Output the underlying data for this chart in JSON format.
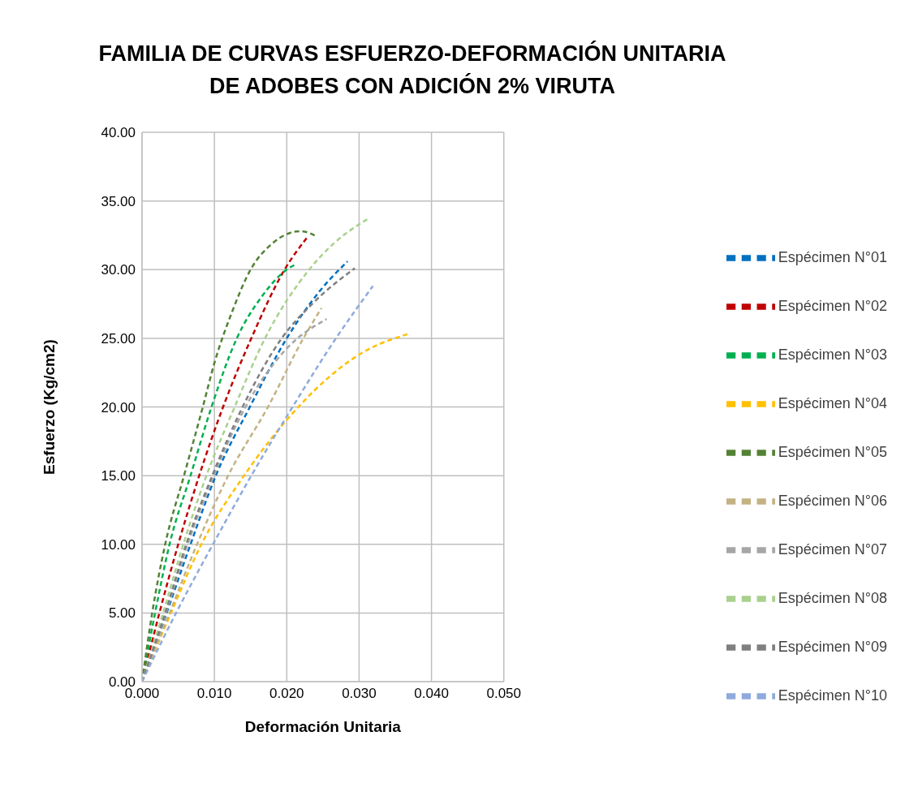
{
  "chart_data": {
    "type": "line",
    "title": "FAMILIA DE CURVAS ESFUERZO-DEFORMACIÓN UNITARIA\nDE ADOBES CON ADICIÓN 2% VIRUTA",
    "xlabel": "Deformación Unitaria",
    "ylabel": "Esfuerzo (Kg/cm2)",
    "xlim": [
      0,
      0.05
    ],
    "xticks": [
      {
        "value": 0,
        "label": "0.000"
      },
      {
        "value": 0.01,
        "label": "0.010"
      },
      {
        "value": 0.02,
        "label": "0.020"
      },
      {
        "value": 0.03,
        "label": "0.030"
      },
      {
        "value": 0.04,
        "label": "0.040"
      },
      {
        "value": 0.05,
        "label": "0.050"
      }
    ],
    "ylim": [
      0,
      40
    ],
    "yticks": [
      {
        "value": 0,
        "label": "0.00"
      },
      {
        "value": 5,
        "label": "5.00"
      },
      {
        "value": 10,
        "label": "10.00"
      },
      {
        "value": 15,
        "label": "15.00"
      },
      {
        "value": 20,
        "label": "20.00"
      },
      {
        "value": 25,
        "label": "25.00"
      },
      {
        "value": 30,
        "label": "30.00"
      },
      {
        "value": 35,
        "label": "35.00"
      },
      {
        "value": 40,
        "label": "40.00"
      }
    ],
    "grid": true,
    "legend": "right",
    "marker": "none",
    "line_style": "dashed",
    "series": [
      {
        "name": "Espécimen N°01",
        "color": "#0070c0",
        "x": [
          0,
          0.0034,
          0.0067,
          0.0102,
          0.0149,
          0.02,
          0.0245,
          0.0284
        ],
        "values": [
          0,
          5,
          10,
          15,
          20,
          25,
          28.4,
          30.6
        ]
      },
      {
        "name": "Espécimen N°02",
        "color": "#c00000",
        "x": [
          0,
          0.0024,
          0.005,
          0.0079,
          0.0112,
          0.0151,
          0.0197,
          0.0229
        ],
        "values": [
          0,
          5,
          10,
          15,
          20,
          25,
          30,
          32.4
        ]
      },
      {
        "name": "Espécimen N°03",
        "color": "#00b050",
        "x": [
          0,
          0.0018,
          0.0038,
          0.0067,
          0.0096,
          0.0131,
          0.0165,
          0.02,
          0.0213
        ],
        "values": [
          0,
          5,
          10,
          15,
          20,
          25,
          28,
          30,
          30.4
        ]
      },
      {
        "name": "Espécimen N°04",
        "color": "#ffc000",
        "x": [
          0,
          0.004,
          0.0082,
          0.0141,
          0.0216,
          0.0306,
          0.0367
        ],
        "values": [
          0,
          5,
          10,
          15,
          20,
          24,
          25.3
        ]
      },
      {
        "name": "Espécimen N°05",
        "color": "#548235",
        "x": [
          0,
          0.0014,
          0.0032,
          0.0058,
          0.0084,
          0.01,
          0.0125,
          0.015,
          0.018,
          0.0219,
          0.0242
        ],
        "values": [
          0,
          5,
          10,
          15,
          20,
          23.2,
          27,
          30,
          31.9,
          32.8,
          32.4
        ]
      },
      {
        "name": "Espécimen N°06",
        "color": "#c4b283",
        "x": [
          0,
          0.0038,
          0.0076,
          0.0119,
          0.0174,
          0.0223,
          0.0248
        ],
        "values": [
          0,
          5,
          10,
          15,
          20,
          25,
          27.2
        ]
      },
      {
        "name": "Espécimen N°07",
        "color": "#a6a6a6",
        "x": [
          0,
          0.0033,
          0.0063,
          0.0099,
          0.0143,
          0.0199,
          0.0255
        ],
        "values": [
          0,
          5,
          10,
          15,
          20,
          24.2,
          26.4
        ]
      },
      {
        "name": "Espécimen N°08",
        "color": "#a9d18e",
        "x": [
          0,
          0.0029,
          0.0057,
          0.0089,
          0.0128,
          0.017,
          0.0231,
          0.03,
          0.0313
        ],
        "values": [
          0,
          5,
          10,
          15,
          20,
          25,
          30,
          33.3,
          33.7
        ]
      },
      {
        "name": "Espécimen N°09",
        "color": "#7f7f7f",
        "x": [
          0,
          0.0032,
          0.0061,
          0.0097,
          0.0139,
          0.0193,
          0.0237,
          0.0294
        ],
        "values": [
          0,
          5,
          10,
          15,
          20,
          25,
          27.6,
          30.1
        ]
      },
      {
        "name": "Espécimen N°10",
        "color": "#8faadc",
        "x": [
          0,
          0.0047,
          0.0098,
          0.0151,
          0.0208,
          0.0268,
          0.0319
        ],
        "values": [
          0,
          5,
          10,
          15,
          20,
          25,
          28.8
        ]
      }
    ]
  }
}
